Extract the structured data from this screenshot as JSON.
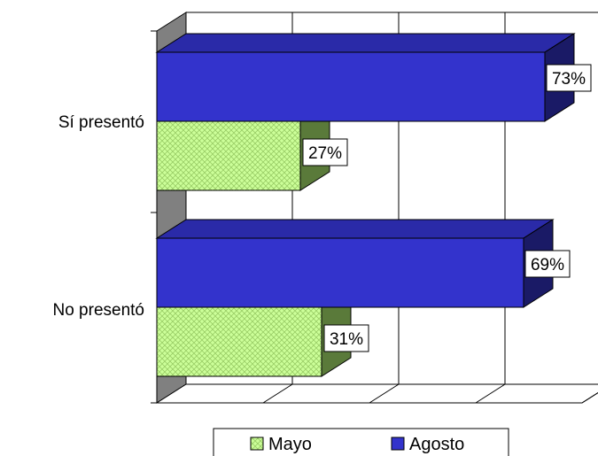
{
  "chart_data": {
    "type": "bar",
    "orientation": "horizontal",
    "three_d": true,
    "categories": [
      "Sí presentó",
      "No presentó"
    ],
    "series": [
      {
        "name": "Mayo",
        "values": [
          27,
          31
        ],
        "labels": [
          "27%",
          "31%"
        ],
        "color": "#ccff99",
        "pattern": "crosshatch"
      },
      {
        "name": "Agosto",
        "values": [
          73,
          69
        ],
        "labels": [
          "73%",
          "69%"
        ],
        "color": "#3333cc"
      }
    ],
    "xlim": [
      0,
      100
    ],
    "unit": "%",
    "grid": true,
    "legend_position": "bottom"
  },
  "colors": {
    "mayo_front": "#ccff99",
    "mayo_pattern": "#99cc66",
    "mayo_side": "#5a7a3a",
    "agosto_front": "#3333cc",
    "agosto_top": "#2a2aa8",
    "agosto_side": "#1a1a66",
    "wall": "#808080",
    "grid": "#000000"
  }
}
